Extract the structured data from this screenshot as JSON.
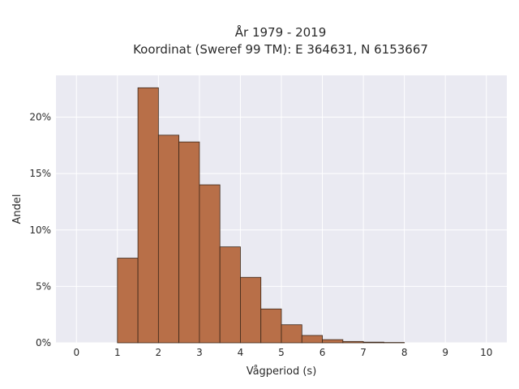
{
  "chart_data": {
    "type": "bar",
    "title_line1": "År 1979 - 2019",
    "title_line2": "Koordinat (Sweref 99 TM): E 364631, N 6153667",
    "xlabel": "Vågperiod (s)",
    "ylabel": "Andel",
    "xlim": [
      -0.5,
      10.5
    ],
    "ylim": [
      0,
      0.237
    ],
    "x_ticks": [
      0,
      1,
      2,
      3,
      4,
      5,
      6,
      7,
      8,
      9,
      10
    ],
    "x_tick_labels": [
      "0",
      "1",
      "2",
      "3",
      "4",
      "5",
      "6",
      "7",
      "8",
      "9",
      "10"
    ],
    "y_ticks": [
      0,
      0.05,
      0.1,
      0.15,
      0.2
    ],
    "y_tick_labels": [
      "0%",
      "5%",
      "10%",
      "15%",
      "20%"
    ],
    "bin_width": 0.5,
    "bins": [
      {
        "x0": 1.0,
        "value": 0.075
      },
      {
        "x0": 1.5,
        "value": 0.226
      },
      {
        "x0": 2.0,
        "value": 0.184
      },
      {
        "x0": 2.5,
        "value": 0.178
      },
      {
        "x0": 3.0,
        "value": 0.14
      },
      {
        "x0": 3.5,
        "value": 0.085
      },
      {
        "x0": 4.0,
        "value": 0.058
      },
      {
        "x0": 4.5,
        "value": 0.03
      },
      {
        "x0": 5.0,
        "value": 0.016
      },
      {
        "x0": 5.5,
        "value": 0.0065
      },
      {
        "x0": 6.0,
        "value": 0.0028
      },
      {
        "x0": 6.5,
        "value": 0.0012
      },
      {
        "x0": 7.0,
        "value": 0.0006
      },
      {
        "x0": 7.5,
        "value": 0.0003
      }
    ],
    "grid": true,
    "colors": {
      "background": "#eaeaf2",
      "grid": "#ffffff",
      "bar_fill": "#b86f48",
      "bar_stroke": "#3a2618"
    }
  }
}
